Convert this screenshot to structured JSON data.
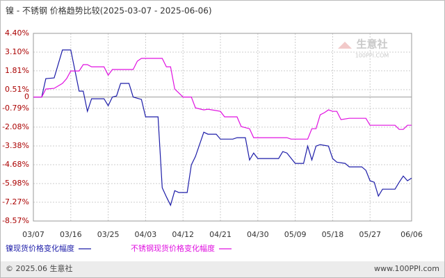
{
  "chart_data": {
    "type": "line",
    "title": "镍 - 不锈钢 价格趋势比较(2025-03-07 - 2025-06-06)",
    "watermark": {
      "logo": "生意社",
      "site": "100PPI.COM"
    },
    "footer": {
      "left": "© 2025.06 生意社",
      "right": "www.100PPI.com"
    },
    "xlim": [
      "03/07",
      "06/06"
    ],
    "xticks": [
      "03/07",
      "03/16",
      "03/25",
      "04/03",
      "04/12",
      "04/21",
      "04/30",
      "05/09",
      "05/18",
      "05/27",
      "06/06"
    ],
    "ylim": [
      -8.57,
      4.4
    ],
    "yticks": [
      {
        "value": 4.4,
        "label": "4.40%"
      },
      {
        "value": 3.1,
        "label": "3.10%"
      },
      {
        "value": 1.81,
        "label": "1.81%"
      },
      {
        "value": 0.51,
        "label": "0.51%"
      },
      0,
      {
        "value": -0.79,
        "label": "-0.79%"
      },
      {
        "value": -2.08,
        "label": "-2.08%"
      },
      {
        "value": -3.38,
        "label": "-3.38%"
      },
      {
        "value": -4.68,
        "label": "-4.68%"
      },
      {
        "value": -5.98,
        "label": "-5.98%"
      },
      {
        "value": -7.27,
        "label": "-7.27%"
      },
      {
        "value": -8.57,
        "label": "-8.57%"
      }
    ],
    "grid": true,
    "series": [
      {
        "name": "镍现货价格变化幅度",
        "color": "#1c1ca8",
        "x": [
          "03/07",
          "03/09",
          "03/10",
          "03/12",
          "03/14",
          "03/16",
          "03/18",
          "03/19",
          "03/20",
          "03/21",
          "03/24",
          "03/25",
          "03/26",
          "03/27",
          "03/28",
          "03/30",
          "03/31",
          "04/02",
          "04/03",
          "04/06",
          "04/07",
          "04/08",
          "04/09",
          "04/10",
          "04/11",
          "04/13",
          "04/14",
          "04/15",
          "04/17",
          "04/18",
          "04/20",
          "04/21",
          "04/24",
          "04/25",
          "04/27",
          "04/28",
          "04/29",
          "04/30",
          "05/05",
          "05/06",
          "05/07",
          "05/09",
          "05/11",
          "05/12",
          "05/13",
          "05/14",
          "05/15",
          "05/17",
          "05/18",
          "05/19",
          "05/21",
          "05/22",
          "05/25",
          "05/26",
          "05/27",
          "05/28",
          "05/29",
          "05/30",
          "06/02",
          "06/03",
          "06/04",
          "06/05",
          "06/06"
        ],
        "values": [
          0,
          0,
          1.27,
          1.32,
          3.25,
          3.25,
          0.41,
          0.41,
          -0.99,
          -0.12,
          -0.12,
          -0.6,
          0,
          0.07,
          0.94,
          0.94,
          0,
          -0.17,
          -1.37,
          -1.37,
          -6.27,
          -6.9,
          -7.48,
          -6.47,
          -6.6,
          -6.6,
          -4.69,
          -4.11,
          -2.43,
          -2.57,
          -2.57,
          -2.91,
          -2.91,
          -2.81,
          -2.81,
          -4.35,
          -3.87,
          -4.25,
          -4.25,
          -3.77,
          -3.87,
          -4.59,
          -4.59,
          -3.39,
          -4.35,
          -3.39,
          -3.29,
          -3.39,
          -4.25,
          -4.5,
          -4.59,
          -4.83,
          -4.83,
          -5.07,
          -5.79,
          -5.89,
          -6.85,
          -6.37,
          -6.37,
          -5.89,
          -5.46,
          -5.79,
          -5.6
        ]
      },
      {
        "name": "不锈钢现货价格变化幅度",
        "color": "#e010e0",
        "x": [
          "03/07",
          "03/09",
          "03/10",
          "03/12",
          "03/14",
          "03/15",
          "03/16",
          "03/18",
          "03/19",
          "03/20",
          "03/21",
          "03/24",
          "03/25",
          "03/26",
          "03/31",
          "04/01",
          "04/02",
          "04/07",
          "04/08",
          "04/09",
          "04/10",
          "04/12",
          "04/14",
          "04/15",
          "04/17",
          "04/18",
          "04/21",
          "04/22",
          "04/25",
          "04/26",
          "04/28",
          "04/29",
          "05/07",
          "05/08",
          "05/12",
          "05/13",
          "05/14",
          "05/15",
          "05/16",
          "05/17",
          "05/18",
          "05/19",
          "05/20",
          "05/22",
          "05/26",
          "05/27",
          "05/30",
          "06/02",
          "06/03",
          "06/04",
          "06/05",
          "06/06"
        ],
        "values": [
          0,
          0,
          0.55,
          0.6,
          0.94,
          1.27,
          1.8,
          1.8,
          2.24,
          2.24,
          2.09,
          2.09,
          1.51,
          1.9,
          1.9,
          2.48,
          2.67,
          2.67,
          2.09,
          2.09,
          0.55,
          0,
          0,
          -0.75,
          -0.89,
          -0.84,
          -0.99,
          -1.37,
          -1.37,
          -2.04,
          -2.19,
          -2.81,
          -2.81,
          -2.91,
          -2.91,
          -2.19,
          -2.19,
          -1.23,
          -1.08,
          -0.89,
          -0.99,
          -0.99,
          -1.56,
          -1.47,
          -1.47,
          -1.95,
          -1.95,
          -1.95,
          -2.24,
          -2.24,
          -1.95,
          -1.95
        ]
      }
    ]
  }
}
